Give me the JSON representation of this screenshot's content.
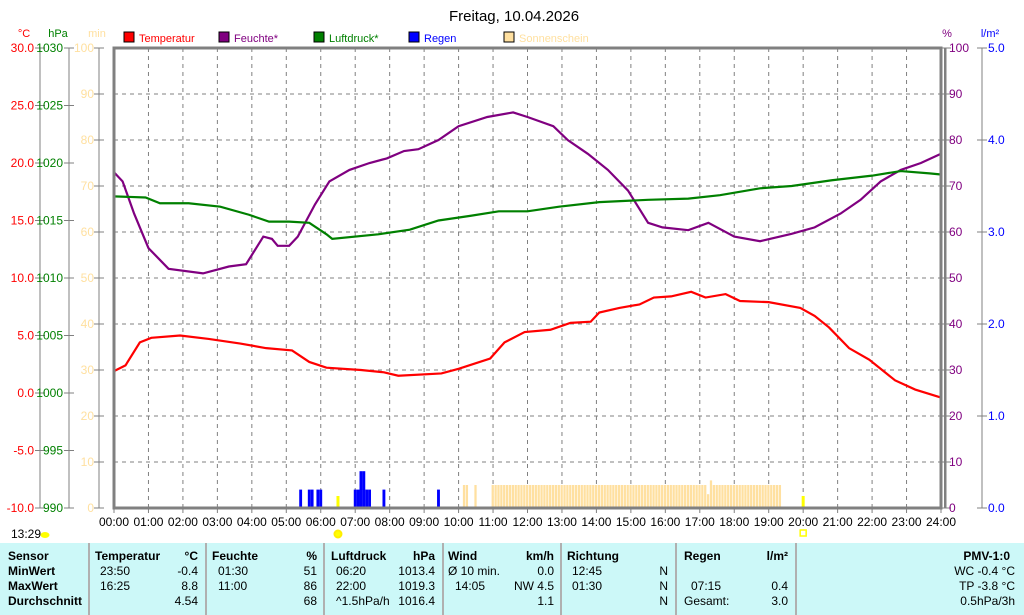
{
  "title": "Freitag, 10.04.2026",
  "current_time": "13:29",
  "chart_data": {
    "type": "line",
    "grid": true,
    "legend_placement": "top",
    "x_axis": {
      "range": [
        "00:00",
        "24:00"
      ],
      "ticks": [
        "00:00",
        "01:00",
        "02:00",
        "03:00",
        "04:00",
        "05:00",
        "06:00",
        "07:00",
        "08:00",
        "09:00",
        "10:00",
        "11:00",
        "12:00",
        "13:00",
        "14:00",
        "15:00",
        "16:00",
        "17:00",
        "18:00",
        "19:00",
        "20:00",
        "21:00",
        "22:00",
        "23:00",
        "24:00"
      ]
    },
    "axes": {
      "temperature": {
        "unit": "°C",
        "range": [
          -10,
          30
        ],
        "ticks": [
          "30.0",
          "25.0",
          "20.0",
          "15.0",
          "10.0",
          "5.0",
          "0.0",
          "-5.0",
          "-10.0"
        ],
        "color": "#ff0000"
      },
      "pressure": {
        "unit": "hPa",
        "range": [
          990,
          1030
        ],
        "ticks": [
          "1030",
          "1025",
          "1020",
          "1015",
          "1010",
          "1005",
          "1000",
          "995",
          "990"
        ],
        "color": "#008000"
      },
      "sunshine": {
        "unit": "min",
        "range": [
          0,
          100
        ],
        "ticks": [
          "100",
          "90",
          "80",
          "70",
          "60",
          "50",
          "40",
          "30",
          "20",
          "10",
          "0"
        ],
        "color": "#ffe0a0"
      },
      "humidity": {
        "unit": "%",
        "range": [
          0,
          100
        ],
        "ticks": [
          "100",
          "90",
          "80",
          "70",
          "60",
          "50",
          "40",
          "30",
          "20",
          "10",
          "0"
        ],
        "color": "#800080"
      },
      "rain": {
        "unit": "l/m²",
        "range": [
          0,
          5
        ],
        "ticks": [
          "5.0",
          "4.0",
          "3.0",
          "2.0",
          "1.0",
          "0.0"
        ],
        "color": "#0000ff"
      }
    },
    "legend": [
      {
        "label": "Temperatur",
        "color": "#ff0000"
      },
      {
        "label": "Feuchte*",
        "color": "#800080"
      },
      {
        "label": "Luftdruck*",
        "color": "#008000"
      },
      {
        "label": "Regen",
        "color": "#0000ff"
      },
      {
        "label": "Sonnenschein",
        "color": "#ffe0a0"
      }
    ],
    "series": [
      {
        "name": "Temperatur",
        "axis": "temperature",
        "color": "#ff0000",
        "points": [
          [
            "00:00",
            1.9
          ],
          [
            "00:20",
            2.4
          ],
          [
            "00:45",
            4.4
          ],
          [
            "01:05",
            4.8
          ],
          [
            "01:55",
            5.0
          ],
          [
            "02:45",
            4.7
          ],
          [
            "03:40",
            4.3
          ],
          [
            "04:25",
            3.9
          ],
          [
            "05:10",
            3.7
          ],
          [
            "05:40",
            2.7
          ],
          [
            "06:10",
            2.2
          ],
          [
            "07:10",
            2.0
          ],
          [
            "07:50",
            1.8
          ],
          [
            "08:15",
            1.5
          ],
          [
            "09:30",
            1.7
          ],
          [
            "10:00",
            2.1
          ],
          [
            "10:55",
            3.0
          ],
          [
            "11:20",
            4.4
          ],
          [
            "11:55",
            5.3
          ],
          [
            "12:40",
            5.5
          ],
          [
            "13:15",
            6.1
          ],
          [
            "13:50",
            6.2
          ],
          [
            "14:05",
            7.0
          ],
          [
            "14:40",
            7.4
          ],
          [
            "15:15",
            7.7
          ],
          [
            "15:40",
            8.3
          ],
          [
            "16:10",
            8.4
          ],
          [
            "16:45",
            8.8
          ],
          [
            "17:10",
            8.3
          ],
          [
            "17:45",
            8.6
          ],
          [
            "18:10",
            8.0
          ],
          [
            "19:00",
            7.9
          ],
          [
            "19:55",
            7.4
          ],
          [
            "20:20",
            6.7
          ],
          [
            "20:45",
            5.7
          ],
          [
            "21:20",
            3.9
          ],
          [
            "21:55",
            2.9
          ],
          [
            "22:40",
            1.1
          ],
          [
            "23:15",
            0.3
          ],
          [
            "24:00",
            -0.4
          ]
        ]
      },
      {
        "name": "Feuchte*",
        "axis": "humidity",
        "color": "#800080",
        "points": [
          [
            "00:00",
            73
          ],
          [
            "00:15",
            71
          ],
          [
            "00:35",
            64
          ],
          [
            "01:00",
            56.5
          ],
          [
            "01:35",
            52
          ],
          [
            "02:35",
            51
          ],
          [
            "03:20",
            52.5
          ],
          [
            "03:50",
            53
          ],
          [
            "04:10",
            57
          ],
          [
            "04:20",
            59
          ],
          [
            "04:35",
            58.5
          ],
          [
            "04:45",
            57
          ],
          [
            "05:05",
            57
          ],
          [
            "05:20",
            59
          ],
          [
            "05:50",
            66
          ],
          [
            "06:15",
            71
          ],
          [
            "06:50",
            73.5
          ],
          [
            "07:25",
            75
          ],
          [
            "07:55",
            76
          ],
          [
            "08:25",
            77.6
          ],
          [
            "08:50",
            78
          ],
          [
            "09:25",
            80
          ],
          [
            "10:00",
            83
          ],
          [
            "10:50",
            85
          ],
          [
            "11:35",
            86
          ],
          [
            "12:00",
            85
          ],
          [
            "12:45",
            83
          ],
          [
            "13:10",
            80
          ],
          [
            "13:45",
            77
          ],
          [
            "14:20",
            73.5
          ],
          [
            "14:55",
            69
          ],
          [
            "15:30",
            62
          ],
          [
            "15:55",
            61
          ],
          [
            "16:40",
            60.4
          ],
          [
            "17:15",
            62
          ],
          [
            "18:00",
            59
          ],
          [
            "18:45",
            58
          ],
          [
            "19:40",
            59.6
          ],
          [
            "20:20",
            61
          ],
          [
            "21:05",
            64
          ],
          [
            "21:40",
            67
          ],
          [
            "22:15",
            71
          ],
          [
            "22:50",
            73.5
          ],
          [
            "23:25",
            75
          ],
          [
            "24:00",
            77
          ]
        ]
      },
      {
        "name": "Luftdruck*",
        "axis": "pressure",
        "color": "#008000",
        "points": [
          [
            "00:00",
            1017.1
          ],
          [
            "00:55",
            1017.0
          ],
          [
            "01:20",
            1016.5
          ],
          [
            "02:10",
            1016.5
          ],
          [
            "03:05",
            1016.2
          ],
          [
            "03:55",
            1015.5
          ],
          [
            "04:30",
            1014.9
          ],
          [
            "05:05",
            1014.9
          ],
          [
            "05:40",
            1014.8
          ],
          [
            "06:10",
            1013.8
          ],
          [
            "06:20",
            1013.4
          ],
          [
            "07:40",
            1013.8
          ],
          [
            "08:35",
            1014.2
          ],
          [
            "09:25",
            1015.0
          ],
          [
            "10:20",
            1015.4
          ],
          [
            "11:10",
            1015.8
          ],
          [
            "12:00",
            1015.8
          ],
          [
            "12:55",
            1016.2
          ],
          [
            "14:05",
            1016.6
          ],
          [
            "15:30",
            1016.8
          ],
          [
            "16:40",
            1016.9
          ],
          [
            "17:35",
            1017.2
          ],
          [
            "18:45",
            1017.8
          ],
          [
            "19:40",
            1018.0
          ],
          [
            "20:50",
            1018.5
          ],
          [
            "22:00",
            1018.9
          ],
          [
            "22:50",
            1019.3
          ],
          [
            "23:40",
            1019.1
          ],
          [
            "24:00",
            1019.0
          ]
        ]
      }
    ],
    "rain_bars": [
      [
        "05:25",
        0.2
      ],
      [
        "05:40",
        0.2
      ],
      [
        "05:45",
        0.2
      ],
      [
        "05:55",
        0.2
      ],
      [
        "06:00",
        0.2
      ],
      [
        "07:00",
        0.2
      ],
      [
        "07:05",
        0.2
      ],
      [
        "07:10",
        0.4
      ],
      [
        "07:15",
        0.4
      ],
      [
        "07:20",
        0.2
      ],
      [
        "07:25",
        0.2
      ],
      [
        "07:50",
        0.2
      ],
      [
        "09:25",
        0.2
      ]
    ],
    "sunshine_ranges": [
      [
        "10:10",
        "10:15",
        5
      ],
      [
        "10:30",
        "10:30",
        5
      ],
      [
        "11:00",
        "17:10",
        5
      ],
      [
        "17:15",
        "17:15",
        3
      ],
      [
        "17:20",
        "17:20",
        6
      ],
      [
        "17:25",
        "19:20",
        5
      ]
    ],
    "sunrise": "06:30",
    "sunset": "20:00"
  },
  "table": {
    "headers": {
      "sensor": "Sensor",
      "temp": "Temperatur",
      "temp_unit": "°C",
      "hum": "Feuchte",
      "hum_unit": "%",
      "press": "Luftdruck",
      "press_unit": "hPa",
      "wind": "Wind",
      "wind_unit": "km/h",
      "dir": "Richtung",
      "rain": "Regen",
      "rain_unit": "l/m²",
      "pmv": "PMV-1:0"
    },
    "rows": [
      {
        "label": "MinWert",
        "temp_time": "23:50",
        "temp": "-0.4",
        "hum_time": "01:30",
        "hum": "51",
        "press_time": "06:20",
        "press": "1013.4",
        "wind_label": "Ø 10 min.",
        "wind": "0.0",
        "dir_time": "12:45",
        "dir": "N",
        "rain_time": "",
        "rain": "",
        "pmv": "WC -0.4 °C"
      },
      {
        "label": "MaxWert",
        "temp_time": "16:25",
        "temp": "8.8",
        "hum_time": "11:00",
        "hum": "86",
        "press_time": "22:00",
        "press": "1019.3",
        "wind_label": "14:05",
        "wind": "NW 4.5",
        "dir_time": "01:30",
        "dir": "N",
        "rain_time": "07:15",
        "rain": "0.4",
        "pmv": "TP -3.8 °C"
      },
      {
        "label": "Durchschnitt",
        "temp_time": "",
        "temp": "4.54",
        "hum_time": "",
        "hum": "68",
        "press_time": "^1.5hPa/h",
        "press": "1016.4",
        "wind_label": "",
        "wind": "1.1",
        "dir_time": "",
        "dir": "N",
        "rain_time": "Gesamt:",
        "rain": "3.0",
        "pmv": "0.5hPa/3h"
      }
    ]
  }
}
